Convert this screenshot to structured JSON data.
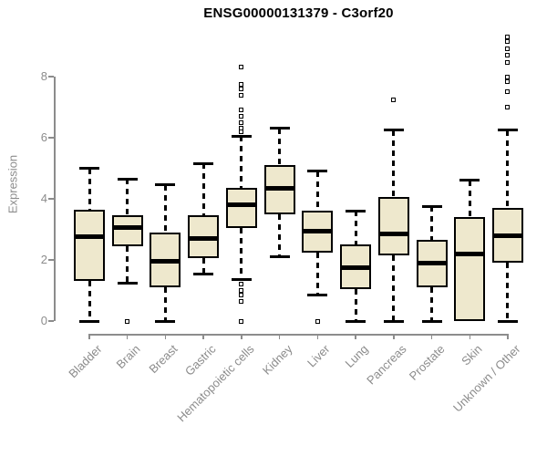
{
  "page": {
    "background": "#ffffff"
  },
  "chart_data": {
    "type": "boxplot",
    "title": "ENSG00000131379 - C3orf20",
    "ylabel": "Expression",
    "xlabel": "",
    "ylim": [
      0,
      9.5
    ],
    "yticks": [
      0,
      2,
      4,
      6,
      8
    ],
    "grid": false,
    "legend": false,
    "box_fill_color": "#EEE8CD",
    "box_line_color": "#000000",
    "axis_color": "#8C8C8C",
    "title_color": "#000000",
    "categories": [
      "Bladder",
      "Brain",
      "Breast",
      "Gastric",
      "Hematopoietic cells",
      "Kidney",
      "Liver",
      "Lung",
      "Pancreas",
      "Prostate",
      "Skin",
      "Unknown / Other"
    ],
    "series": [
      {
        "category": "Bladder",
        "min": 0.0,
        "q1": 1.3,
        "median": 2.75,
        "q3": 3.65,
        "max": 5.0,
        "outliers": []
      },
      {
        "category": "Brain",
        "min": 1.25,
        "q1": 2.45,
        "median": 3.05,
        "q3": 3.45,
        "max": 4.65,
        "outliers": [
          0.0
        ]
      },
      {
        "category": "Breast",
        "min": 0.0,
        "q1": 1.1,
        "median": 1.95,
        "q3": 2.9,
        "max": 4.45,
        "outliers": []
      },
      {
        "category": "Gastric",
        "min": 1.55,
        "q1": 2.05,
        "median": 2.7,
        "q3": 3.45,
        "max": 5.15,
        "outliers": []
      },
      {
        "category": "Hematopoietic cells",
        "min": 1.35,
        "q1": 3.05,
        "median": 3.8,
        "q3": 4.35,
        "max": 6.05,
        "outliers": [
          8.3,
          7.75,
          7.6,
          7.4,
          6.9,
          6.7,
          6.5,
          6.3,
          6.2,
          1.2,
          1.0,
          0.85,
          0.65,
          0.0
        ]
      },
      {
        "category": "Kidney",
        "min": 2.1,
        "q1": 3.5,
        "median": 4.35,
        "q3": 5.1,
        "max": 6.3,
        "outliers": []
      },
      {
        "category": "Liver",
        "min": 0.85,
        "q1": 2.25,
        "median": 2.95,
        "q3": 3.6,
        "max": 4.9,
        "outliers": [
          0.0
        ]
      },
      {
        "category": "Lung",
        "min": 0.0,
        "q1": 1.05,
        "median": 1.75,
        "q3": 2.5,
        "max": 3.6,
        "outliers": []
      },
      {
        "category": "Pancreas",
        "min": 0.0,
        "q1": 2.15,
        "median": 2.85,
        "q3": 4.05,
        "max": 6.25,
        "outliers": [
          7.25
        ]
      },
      {
        "category": "Prostate",
        "min": 0.0,
        "q1": 1.1,
        "median": 1.9,
        "q3": 2.65,
        "max": 3.75,
        "outliers": []
      },
      {
        "category": "Skin",
        "min": 0.0,
        "q1": 0.0,
        "median": 2.2,
        "q3": 3.4,
        "max": 4.6,
        "outliers": []
      },
      {
        "category": "Unknown / Other",
        "min": 0.0,
        "q1": 1.9,
        "median": 2.8,
        "q3": 3.7,
        "max": 6.25,
        "outliers": [
          9.3,
          9.15,
          8.9,
          8.7,
          8.45,
          8.0,
          7.85,
          7.5,
          7.0
        ]
      }
    ]
  }
}
